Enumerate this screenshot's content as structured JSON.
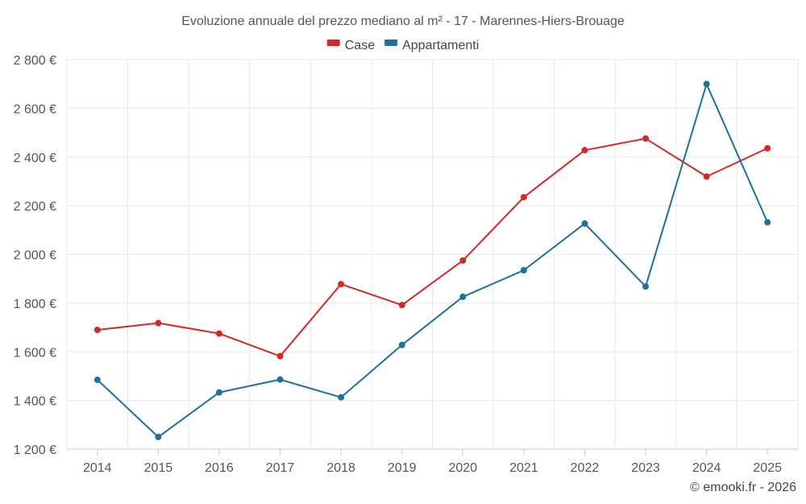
{
  "chart_data": {
    "type": "line",
    "title": "Evoluzione annuale del prezzo mediano al m² - 17 - Marennes-Hiers-Brouage",
    "categories": [
      "2014",
      "2015",
      "2016",
      "2017",
      "2018",
      "2019",
      "2020",
      "2021",
      "2022",
      "2023",
      "2024",
      "2025"
    ],
    "series": [
      {
        "name": "Case",
        "color": "#d62728",
        "values": [
          1690,
          1718,
          1675,
          1582,
          1878,
          1792,
          1975,
          2235,
          2428,
          2476,
          2320,
          2436
        ]
      },
      {
        "name": "Appartamenti",
        "color": "#1f6f9f",
        "values": [
          1485,
          1250,
          1433,
          1486,
          1413,
          1628,
          1826,
          1935,
          2127,
          1868,
          2700,
          2132
        ]
      }
    ],
    "ylim": [
      1200,
      2800
    ],
    "yticks": [
      1200,
      1400,
      1600,
      1800,
      2000,
      2200,
      2400,
      2600,
      2800
    ],
    "ytick_labels": [
      "1 200 €",
      "1 400 €",
      "1 600 €",
      "1 800 €",
      "2 000 €",
      "2 200 €",
      "2 400 €",
      "2 600 €",
      "2 800 €"
    ],
    "grid": true,
    "legend_position": "top-center",
    "xlabel": "",
    "ylabel": ""
  },
  "credit": "© emooki.fr - 2026"
}
